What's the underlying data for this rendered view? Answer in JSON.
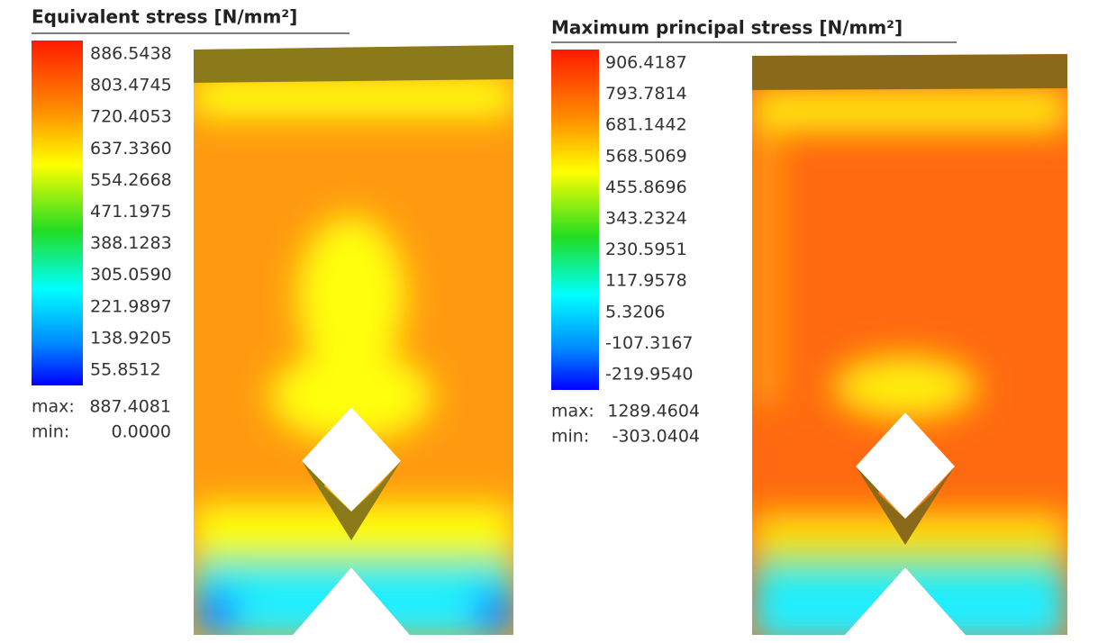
{
  "panels": [
    {
      "title": "Equivalent stress [N/mm²]",
      "legend": [
        "886.5438",
        "803.4745",
        "720.4053",
        "637.3360",
        "554.2668",
        "471.1975",
        "388.1283",
        "305.0590",
        "221.9897",
        "138.9205",
        "55.8512"
      ],
      "max_label": "max:",
      "max": "887.4081",
      "min_label": "min:",
      "min": "0.0000"
    },
    {
      "title": "Maximum principal stress [N/mm²]",
      "legend": [
        "906.4187",
        "793.7814",
        "681.1442",
        "568.5069",
        "455.8696",
        "343.2324",
        "230.5951",
        "117.9578",
        "5.3206",
        "-107.3167",
        "-219.9540"
      ],
      "max_label": "max:",
      "max": "1289.4604",
      "min_label": "min:",
      "min": "-303.0404"
    }
  ]
}
